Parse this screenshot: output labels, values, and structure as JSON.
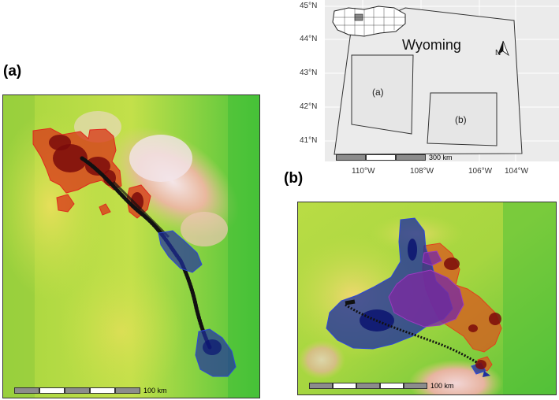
{
  "panel_a": {
    "label": "(a)",
    "scale_label": "100 km"
  },
  "panel_b": {
    "label": "(b)",
    "scale_label": "100 km"
  },
  "inset": {
    "state_name": "Wyoming",
    "north": "N",
    "box_a": "(a)",
    "box_b": "(b)",
    "scale_label": "300 km",
    "lat_ticks": [
      "45°N",
      "44°N",
      "43°N",
      "42°N",
      "41°N"
    ],
    "lon_ticks": [
      "110°W",
      "108°W",
      "106°W",
      "104°W"
    ]
  },
  "colors": {
    "red_range": "#d93a1a",
    "blue_range": "#1e2f9e",
    "purple_overlap": "#7a2aa0",
    "points": "#111111",
    "terrain_low": "#7ec23a",
    "terrain_high": "#f1cfc6"
  }
}
